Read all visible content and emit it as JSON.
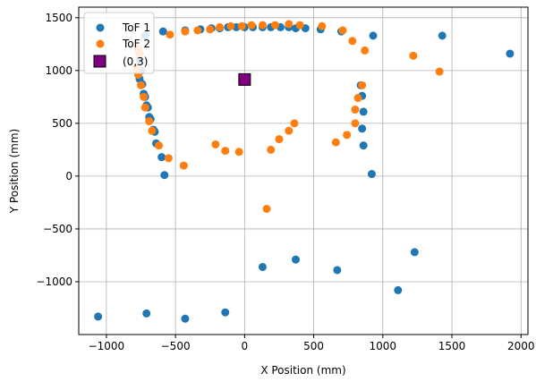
{
  "colors": {
    "series1": "#1f77b4",
    "series2": "#ff7f0e",
    "marker": "#800080",
    "grid": "#b0b0b0"
  },
  "chart_data": {
    "type": "scatter",
    "title": "",
    "xlabel": "X Position (mm)",
    "ylabel": "Y Position (mm)",
    "xlim": [
      -1200,
      2050
    ],
    "ylim": [
      -1500,
      1600
    ],
    "xticks": [
      -1000,
      -500,
      0,
      500,
      1000,
      1500,
      2000
    ],
    "yticks": [
      -1000,
      -500,
      0,
      500,
      1000,
      1500
    ],
    "xtick_labels": [
      "−1000",
      "−500",
      "0",
      "500",
      "1000",
      "1500",
      "2000"
    ],
    "ytick_labels": [
      "−1000",
      "−500",
      "0",
      "500",
      "1000",
      "1500"
    ],
    "grid": true,
    "legend_position": "top-left",
    "legend": [
      "ToF 1",
      "ToF 2",
      "(0,3)"
    ],
    "series": [
      {
        "name": "ToF 1",
        "color": "#1f77b4",
        "marker": "circle",
        "points": [
          [
            -720,
            1330
          ],
          [
            -590,
            1370
          ],
          [
            -430,
            1380
          ],
          [
            -320,
            1390
          ],
          [
            -240,
            1400
          ],
          [
            -180,
            1400
          ],
          [
            -120,
            1410
          ],
          [
            -60,
            1410
          ],
          [
            0,
            1410
          ],
          [
            60,
            1410
          ],
          [
            130,
            1410
          ],
          [
            190,
            1410
          ],
          [
            260,
            1410
          ],
          [
            320,
            1410
          ],
          [
            370,
            1400
          ],
          [
            440,
            1400
          ],
          [
            550,
            1390
          ],
          [
            700,
            1370
          ],
          [
            930,
            1330
          ],
          [
            1430,
            1330
          ],
          [
            1920,
            1160
          ],
          [
            -760,
            1100
          ],
          [
            -750,
            1000
          ],
          [
            -760,
            920
          ],
          [
            -740,
            870
          ],
          [
            -730,
            780
          ],
          [
            -720,
            750
          ],
          [
            -710,
            670
          ],
          [
            -700,
            650
          ],
          [
            -690,
            560
          ],
          [
            -680,
            540
          ],
          [
            -660,
            440
          ],
          [
            -650,
            420
          ],
          [
            -640,
            310
          ],
          [
            -600,
            180
          ],
          [
            -580,
            10
          ],
          [
            840,
            860
          ],
          [
            850,
            760
          ],
          [
            860,
            610
          ],
          [
            850,
            450
          ],
          [
            860,
            290
          ],
          [
            920,
            20
          ],
          [
            130,
            -860
          ],
          [
            370,
            -790
          ],
          [
            670,
            -890
          ],
          [
            1230,
            -720
          ],
          [
            1110,
            -1080
          ],
          [
            -1060,
            -1330
          ],
          [
            -710,
            -1300
          ],
          [
            -430,
            -1350
          ],
          [
            -140,
            -1290
          ]
        ]
      },
      {
        "name": "ToF 2",
        "color": "#ff7f0e",
        "marker": "circle",
        "points": [
          [
            -540,
            1340
          ],
          [
            -430,
            1370
          ],
          [
            -340,
            1380
          ],
          [
            -250,
            1390
          ],
          [
            -180,
            1410
          ],
          [
            -100,
            1420
          ],
          [
            -20,
            1420
          ],
          [
            50,
            1430
          ],
          [
            130,
            1430
          ],
          [
            220,
            1430
          ],
          [
            320,
            1440
          ],
          [
            400,
            1430
          ],
          [
            560,
            1420
          ],
          [
            710,
            1380
          ],
          [
            780,
            1280
          ],
          [
            870,
            1190
          ],
          [
            1220,
            1140
          ],
          [
            1410,
            990
          ],
          [
            -770,
            1200
          ],
          [
            -760,
            1160
          ],
          [
            -780,
            1030
          ],
          [
            -770,
            960
          ],
          [
            -750,
            860
          ],
          [
            -730,
            750
          ],
          [
            -720,
            650
          ],
          [
            -690,
            520
          ],
          [
            -670,
            430
          ],
          [
            -620,
            290
          ],
          [
            -550,
            170
          ],
          [
            -440,
            100
          ],
          [
            -210,
            300
          ],
          [
            -140,
            240
          ],
          [
            -40,
            230
          ],
          [
            190,
            250
          ],
          [
            250,
            350
          ],
          [
            320,
            430
          ],
          [
            360,
            500
          ],
          [
            660,
            320
          ],
          [
            740,
            390
          ],
          [
            800,
            500
          ],
          [
            800,
            630
          ],
          [
            820,
            740
          ],
          [
            850,
            860
          ],
          [
            160,
            -310
          ]
        ]
      },
      {
        "name": "(0,3)",
        "color": "#800080",
        "marker": "square",
        "points": [
          [
            0,
            915
          ]
        ]
      }
    ]
  }
}
